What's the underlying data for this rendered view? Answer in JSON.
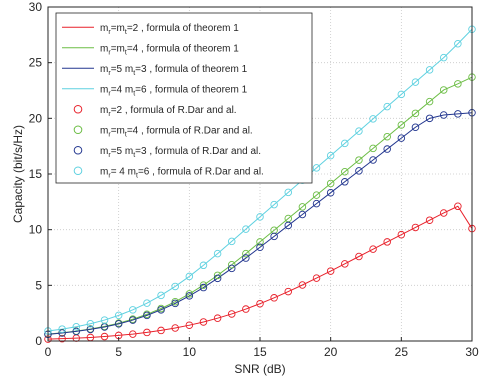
{
  "chart_data": {
    "type": "line",
    "xlabel": "SNR (dB)",
    "ylabel": "Capacity (bit/s/Hz)",
    "xlim": [
      0,
      30
    ],
    "ylim": [
      0,
      30
    ],
    "xticks": [
      0,
      5,
      10,
      15,
      20,
      25,
      30
    ],
    "yticks": [
      0,
      5,
      10,
      15,
      20,
      25,
      30
    ],
    "grid": true,
    "legend_position": "top-left",
    "x": [
      0,
      1,
      2,
      3,
      4,
      5,
      6,
      7,
      8,
      9,
      10,
      11,
      12,
      13,
      14,
      15,
      16,
      17,
      18,
      19,
      20,
      21,
      22,
      23,
      24,
      25,
      26,
      27,
      28,
      29,
      30
    ],
    "series": [
      {
        "legend": [
          {
            "t": "m"
          },
          {
            "t": "r",
            "sub": true
          },
          {
            "t": "=m"
          },
          {
            "t": "t",
            "sub": true
          },
          {
            "t": "=2 , formula of theorem 1"
          }
        ],
        "style": "line",
        "color": "#e8202a",
        "values": [
          0.17,
          0.21,
          0.26,
          0.32,
          0.4,
          0.5,
          0.62,
          0.77,
          0.95,
          1.17,
          1.42,
          1.71,
          2.05,
          2.43,
          2.87,
          3.35,
          3.88,
          4.44,
          5.03,
          5.65,
          6.28,
          6.93,
          7.59,
          8.25,
          8.9,
          9.55,
          10.2,
          10.85,
          11.5,
          12.1,
          10.1
        ]
      },
      {
        "legend": [
          {
            "t": "m"
          },
          {
            "t": "r",
            "sub": true
          },
          {
            "t": "=m"
          },
          {
            "t": "t",
            "sub": true
          },
          {
            "t": "=4 , formula of theorem 1"
          }
        ],
        "style": "line",
        "color": "#6cbd45",
        "values": [
          0.62,
          0.74,
          0.89,
          1.08,
          1.31,
          1.6,
          1.96,
          2.4,
          2.92,
          3.53,
          4.23,
          5.02,
          5.9,
          6.85,
          7.85,
          8.9,
          9.95,
          11.0,
          12.05,
          13.1,
          14.15,
          15.2,
          16.25,
          17.3,
          18.35,
          19.4,
          20.45,
          21.5,
          22.55,
          23.1,
          23.7
        ]
      },
      {
        "legend": [
          {
            "t": "m"
          },
          {
            "t": "r",
            "sub": true
          },
          {
            "t": "=5 m"
          },
          {
            "t": "t",
            "sub": true
          },
          {
            "t": "=3 , formula of theorem 1"
          }
        ],
        "style": "line",
        "color": "#22368f",
        "values": [
          0.6,
          0.72,
          0.86,
          1.04,
          1.26,
          1.54,
          1.88,
          2.3,
          2.8,
          3.38,
          4.05,
          4.8,
          5.63,
          6.52,
          7.45,
          8.42,
          9.4,
          10.38,
          11.36,
          12.34,
          13.32,
          14.3,
          15.28,
          16.26,
          17.24,
          18.22,
          19.2,
          20.0,
          20.3,
          20.4,
          20.5
        ]
      },
      {
        "legend": [
          {
            "t": "m"
          },
          {
            "t": "r",
            "sub": true
          },
          {
            "t": "=4 m"
          },
          {
            "t": "t",
            "sub": true
          },
          {
            "t": "=6 , formula of theorem 1"
          }
        ],
        "style": "line",
        "color": "#5fd1e0",
        "values": [
          0.9,
          1.07,
          1.28,
          1.55,
          1.88,
          2.3,
          2.8,
          3.4,
          4.1,
          4.9,
          5.8,
          6.8,
          7.85,
          8.95,
          10.05,
          11.15,
          12.25,
          13.35,
          14.45,
          15.55,
          16.65,
          17.75,
          18.85,
          19.95,
          21.05,
          22.15,
          23.25,
          24.35,
          25.45,
          26.7,
          28.0
        ]
      },
      {
        "legend": [
          {
            "t": "m"
          },
          {
            "t": "r",
            "sub": true
          },
          {
            "t": "=2 , formula of R.Dar and al."
          }
        ],
        "style": "marker",
        "color": "#e8202a",
        "same_as": 0
      },
      {
        "legend": [
          {
            "t": "m"
          },
          {
            "t": "r",
            "sub": true
          },
          {
            "t": "=m"
          },
          {
            "t": "t",
            "sub": true
          },
          {
            "t": "=4 , formula of R.Dar and al."
          }
        ],
        "style": "marker",
        "color": "#6cbd45",
        "same_as": 1
      },
      {
        "legend": [
          {
            "t": "m"
          },
          {
            "t": "r",
            "sub": true
          },
          {
            "t": "=5 m"
          },
          {
            "t": "t",
            "sub": true
          },
          {
            "t": "=3 , formula of R.Dar and al."
          }
        ],
        "style": "marker",
        "color": "#22368f",
        "same_as": 2
      },
      {
        "legend": [
          {
            "t": "m"
          },
          {
            "t": "r",
            "sub": true
          },
          {
            "t": "= 4 m"
          },
          {
            "t": "t",
            "sub": true
          },
          {
            "t": "=6 , formula of R.Dar and al."
          }
        ],
        "style": "marker",
        "color": "#5fd1e0",
        "same_as": 3
      }
    ]
  }
}
